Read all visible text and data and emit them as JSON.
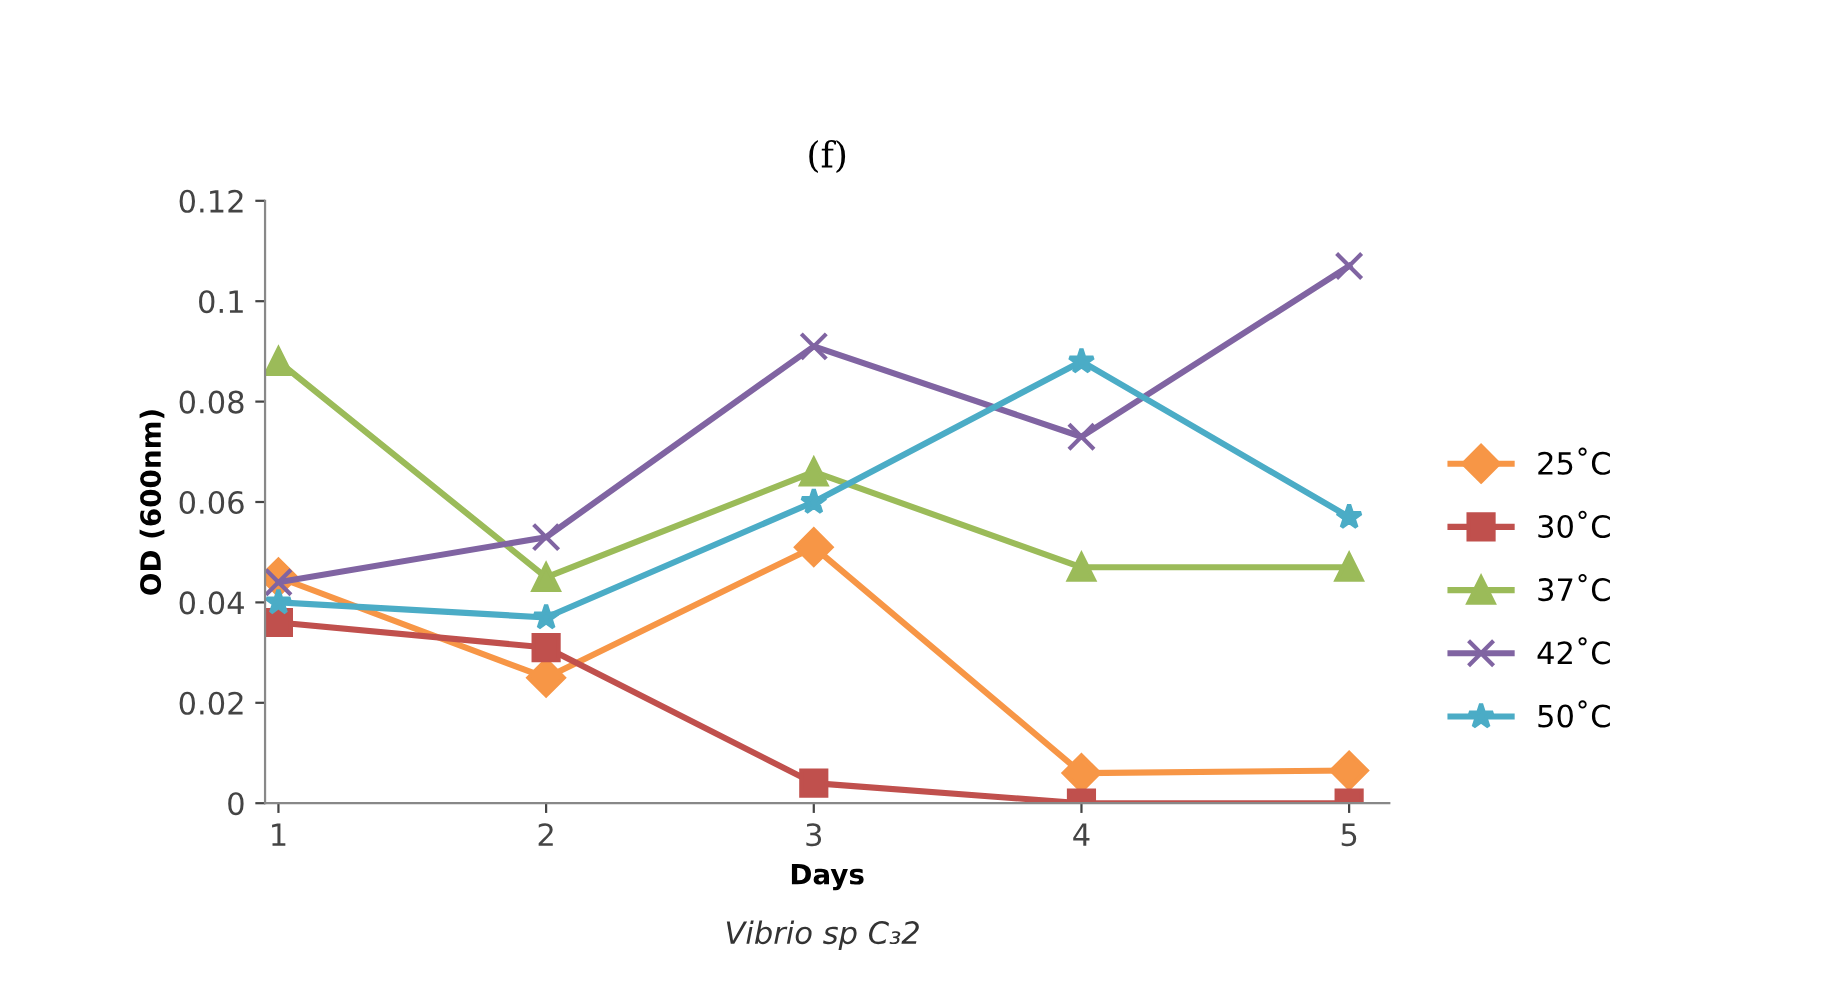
{
  "chart_data": {
    "type": "line",
    "title": "(f)",
    "xlabel": "Days",
    "ylabel": "OD (600nm)",
    "annotations": [
      "Vibrio sp C₃2"
    ],
    "categories": [
      "1",
      "2",
      "3",
      "4",
      "5"
    ],
    "ylim": [
      0,
      0.12
    ],
    "yticks": [
      {
        "value": 0,
        "label": "0"
      },
      0.02,
      0.04,
      0.06,
      0.08,
      {
        "value": 0.1,
        "label": "0.1"
      },
      0.12
    ],
    "grid": false,
    "legend": "right",
    "series": [
      {
        "name": "25˚C",
        "color": "#f79646",
        "marker": "diamond",
        "values": [
          0.045,
          0.025,
          0.051,
          0.006,
          0.0065
        ]
      },
      {
        "name": "30˚C",
        "color": "#c0504d",
        "marker": "square",
        "values": [
          0.036,
          0.031,
          0.004,
          0,
          0
        ]
      },
      {
        "name": "37˚C",
        "color": "#9bbb59",
        "marker": "triangle",
        "values": [
          0.088,
          0.045,
          0.066,
          0.047,
          0.047
        ]
      },
      {
        "name": "42˚C",
        "color": "#8064a2",
        "marker": "cross",
        "values": [
          0.044,
          0.053,
          0.091,
          0.073,
          0.107
        ]
      },
      {
        "name": "50˚C",
        "color": "#4bacc6",
        "marker": "star",
        "values": [
          0.04,
          0.037,
          0.06,
          0.088,
          0.057
        ]
      }
    ]
  }
}
